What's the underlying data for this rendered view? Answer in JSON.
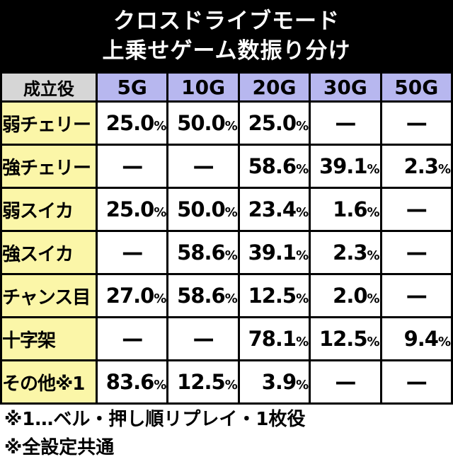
{
  "title": {
    "line1": "クロスドライブモード",
    "line2": "上乗せゲーム数振り分け"
  },
  "table": {
    "role_header": "成立役",
    "columns": [
      "5G",
      "10G",
      "20G",
      "30G",
      "50G"
    ],
    "rows": [
      {
        "role": "弱チェリー",
        "values": [
          "25.0",
          "50.0",
          "25.0",
          "—",
          "—"
        ]
      },
      {
        "role": "強チェリー",
        "values": [
          "—",
          "—",
          "58.6",
          "39.1",
          "2.3"
        ]
      },
      {
        "role": "弱スイカ",
        "values": [
          "25.0",
          "50.0",
          "23.4",
          "1.6",
          "—"
        ]
      },
      {
        "role": "強スイカ",
        "values": [
          "—",
          "58.6",
          "39.1",
          "2.3",
          "—"
        ]
      },
      {
        "role": "チャンス目",
        "values": [
          "27.0",
          "58.6",
          "12.5",
          "2.0",
          "—"
        ]
      },
      {
        "role": "十字架",
        "values": [
          "—",
          "—",
          "78.1",
          "12.5",
          "9.4"
        ]
      },
      {
        "role": "その他※1",
        "values": [
          "83.6",
          "12.5",
          "3.9",
          "—",
          "—"
        ]
      }
    ],
    "percent_suffix": "%",
    "dash": "—"
  },
  "notes": [
    "※1…ベル・押し順リプレイ・1枚役",
    "※全設定共通"
  ],
  "colors": {
    "title_bg": "#000000",
    "header_role_bg": "#d6d6d6",
    "header_col_bg": "#b7b7ef",
    "role_bg": "#fbf6a8"
  }
}
